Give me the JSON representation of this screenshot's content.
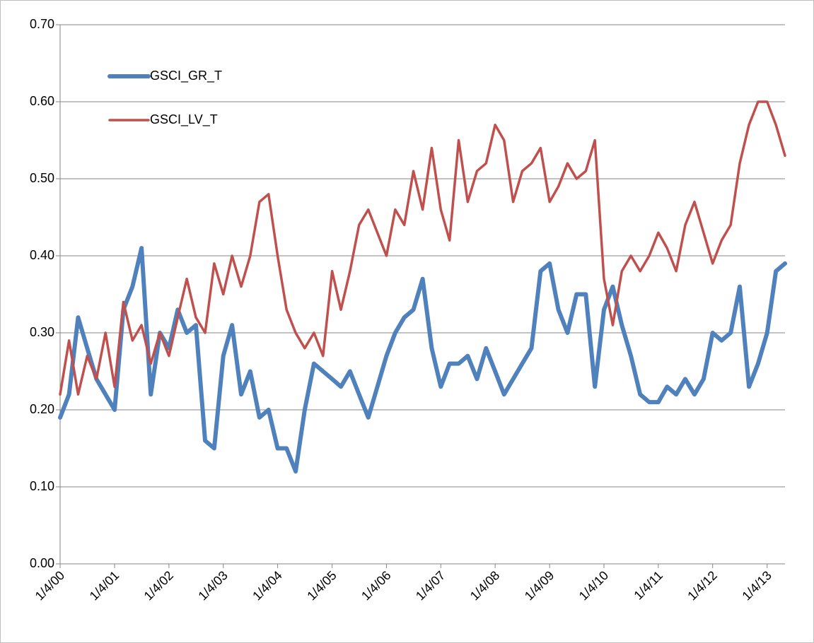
{
  "chart_data": {
    "type": "line",
    "x": [
      "1/4/00",
      "3/4/00",
      "5/4/00",
      "7/4/00",
      "9/4/00",
      "11/4/00",
      "1/4/01",
      "3/4/01",
      "5/4/01",
      "7/4/01",
      "9/4/01",
      "11/4/01",
      "1/4/02",
      "3/4/02",
      "5/4/02",
      "7/4/02",
      "9/4/02",
      "11/4/02",
      "1/4/03",
      "3/4/03",
      "5/4/03",
      "7/4/03",
      "9/4/03",
      "11/4/03",
      "1/4/04",
      "3/4/04",
      "5/4/04",
      "7/4/04",
      "9/4/04",
      "11/4/04",
      "1/4/05",
      "3/4/05",
      "5/4/05",
      "7/4/05",
      "9/4/05",
      "11/4/05",
      "1/4/06",
      "3/4/06",
      "5/4/06",
      "7/4/06",
      "9/4/06",
      "11/4/06",
      "1/4/07",
      "3/4/07",
      "5/4/07",
      "7/4/07",
      "9/4/07",
      "11/4/07",
      "1/4/08",
      "3/4/08",
      "5/4/08",
      "7/4/08",
      "9/4/08",
      "11/4/08",
      "1/4/09",
      "3/4/09",
      "5/4/09",
      "7/4/09",
      "9/4/09",
      "11/4/09",
      "1/4/10",
      "3/4/10",
      "5/4/10",
      "7/4/10",
      "9/4/10",
      "11/4/10",
      "1/4/11",
      "3/4/11",
      "5/4/11",
      "7/4/11",
      "9/4/11",
      "11/4/11",
      "1/4/12",
      "3/4/12",
      "5/4/12",
      "7/4/12",
      "9/4/12",
      "11/4/12",
      "1/4/13",
      "3/4/13",
      "5/4/13"
    ],
    "series": [
      {
        "name": "GSCI_GR_T",
        "color": "#4f81bd",
        "width": 6,
        "values": [
          0.19,
          0.22,
          0.32,
          0.28,
          0.24,
          0.22,
          0.2,
          0.33,
          0.36,
          0.41,
          0.22,
          0.3,
          0.28,
          0.33,
          0.3,
          0.31,
          0.16,
          0.15,
          0.27,
          0.31,
          0.22,
          0.25,
          0.19,
          0.2,
          0.15,
          0.15,
          0.12,
          0.2,
          0.26,
          0.25,
          0.24,
          0.23,
          0.25,
          0.22,
          0.19,
          0.23,
          0.27,
          0.3,
          0.32,
          0.33,
          0.37,
          0.28,
          0.23,
          0.26,
          0.26,
          0.27,
          0.24,
          0.28,
          0.25,
          0.22,
          0.24,
          0.26,
          0.28,
          0.38,
          0.39,
          0.33,
          0.3,
          0.35,
          0.35,
          0.23,
          0.33,
          0.36,
          0.31,
          0.27,
          0.22,
          0.21,
          0.21,
          0.23,
          0.22,
          0.24,
          0.22,
          0.24,
          0.3,
          0.29,
          0.3,
          0.36,
          0.23,
          0.26,
          0.3,
          0.38,
          0.39
        ]
      },
      {
        "name": "GSCI_LV_T",
        "color": "#c0504d",
        "width": 3.5,
        "values": [
          0.22,
          0.29,
          0.22,
          0.27,
          0.24,
          0.3,
          0.23,
          0.34,
          0.29,
          0.31,
          0.26,
          0.3,
          0.27,
          0.32,
          0.37,
          0.32,
          0.3,
          0.39,
          0.35,
          0.4,
          0.36,
          0.4,
          0.47,
          0.48,
          0.4,
          0.33,
          0.3,
          0.28,
          0.3,
          0.27,
          0.38,
          0.33,
          0.38,
          0.44,
          0.46,
          0.43,
          0.4,
          0.46,
          0.44,
          0.51,
          0.46,
          0.54,
          0.46,
          0.42,
          0.55,
          0.47,
          0.51,
          0.52,
          0.57,
          0.55,
          0.47,
          0.51,
          0.52,
          0.54,
          0.47,
          0.49,
          0.52,
          0.5,
          0.51,
          0.55,
          0.37,
          0.31,
          0.38,
          0.4,
          0.38,
          0.4,
          0.43,
          0.41,
          0.38,
          0.44,
          0.47,
          0.43,
          0.39,
          0.42,
          0.44,
          0.52,
          0.57,
          0.6,
          0.6,
          0.57,
          0.53
        ]
      }
    ],
    "xlim": [
      "1/4/00",
      "5/4/13"
    ],
    "xticks": [
      "1/4/00",
      "1/4/01",
      "1/4/02",
      "1/4/03",
      "1/4/04",
      "1/4/05",
      "1/4/06",
      "1/4/07",
      "1/4/08",
      "1/4/09",
      "1/4/10",
      "1/4/11",
      "1/4/12",
      "1/4/13"
    ],
    "ylim": [
      0,
      0.7
    ],
    "yticks": [
      {
        "value": 0,
        "label": "0.00"
      },
      {
        "value": 0.1,
        "label": "0.10"
      },
      {
        "value": 0.2,
        "label": "0.20"
      },
      {
        "value": 0.3,
        "label": "0.30"
      },
      {
        "value": 0.4,
        "label": "0.40"
      },
      {
        "value": 0.5,
        "label": "0.50"
      },
      {
        "value": 0.6,
        "label": "0.60"
      },
      {
        "value": 0.7,
        "label": "0.70"
      }
    ],
    "grid": true,
    "legend": "top-left"
  }
}
